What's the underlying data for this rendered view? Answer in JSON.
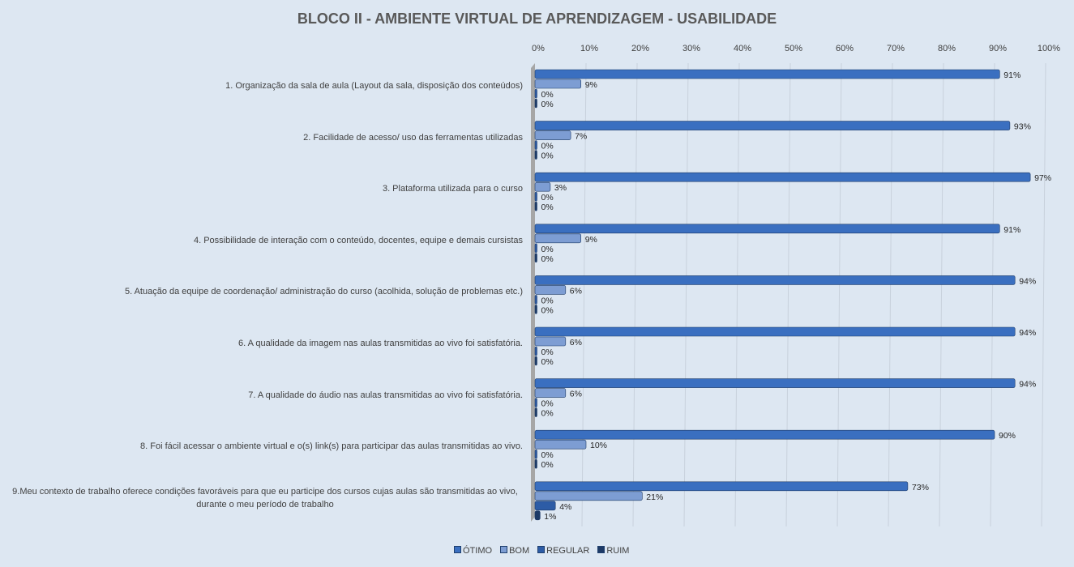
{
  "chart_data": {
    "type": "bar",
    "title": "BLOCO II - AMBIENTE VIRTUAL DE APRENDIZAGEM - USABILIDADE",
    "categories": [
      "1. Organização da sala de aula (Layout da sala, disposição dos conteúdos)",
      "2. Facilidade de acesso/ uso das ferramentas utilizadas",
      "3. Plataforma utilizada para o curso",
      "4. Possibilidade de interação com o conteúdo, docentes, equipe e demais cursistas",
      "5. Atuação da equipe de coordenação/ administração do curso (acolhida, solução de problemas etc.)",
      "6. A qualidade da imagem nas aulas transmitidas ao vivo foi satisfatória.",
      "7. A qualidade do áudio nas aulas transmitidas ao vivo foi satisfatória.",
      "8. Foi fácil acessar o ambiente virtual e o(s) link(s) para participar das aulas transmitidas ao vivo.",
      "9.Meu contexto de trabalho oferece condições favoráveis para que eu participe dos cursos cujas aulas são transmitidas ao vivo, durante o meu período de trabalho"
    ],
    "series": [
      {
        "name": "ÓTIMO",
        "color": "#3a6fc0",
        "values": [
          91,
          93,
          97,
          91,
          94,
          94,
          94,
          90,
          73
        ]
      },
      {
        "name": "BOM",
        "color": "#7d9dd3",
        "values": [
          9,
          7,
          3,
          9,
          6,
          6,
          6,
          10,
          21
        ]
      },
      {
        "name": "REGULAR",
        "color": "#2d5ca6",
        "values": [
          0,
          0,
          0,
          0,
          0,
          0,
          0,
          0,
          4
        ]
      },
      {
        "name": "RUIM",
        "color": "#1d3a66",
        "values": [
          0,
          0,
          0,
          0,
          0,
          0,
          0,
          0,
          1
        ]
      }
    ],
    "xticks": [
      "0%",
      "10%",
      "20%",
      "30%",
      "40%",
      "50%",
      "60%",
      "70%",
      "80%",
      "90%",
      "100%"
    ],
    "xlim": [
      0,
      100
    ],
    "legend": "bottom",
    "grid": true
  }
}
